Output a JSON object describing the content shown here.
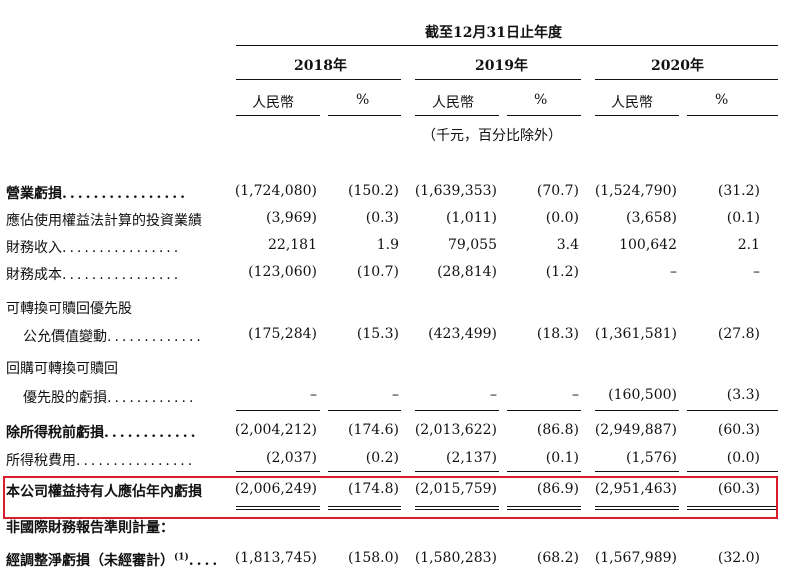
{
  "header": {
    "period_title": "截至12月31日止年度",
    "years": [
      "2018年",
      "2019年",
      "2020年"
    ],
    "currency_label": "人民幣",
    "percent_label": "%",
    "unit_note": "（千元，百分比除外）"
  },
  "rows": [
    {
      "label": "營業虧損",
      "leaders": "................",
      "bold": true,
      "values": [
        "(1,724,080)",
        "(150.2)",
        "(1,639,353)",
        "(70.7)",
        "(1,524,790)",
        "(31.2)"
      ]
    },
    {
      "label": "應佔使用權益法計算的投資業績",
      "leaders": "",
      "values": [
        "(3,969)",
        "(0.3)",
        "(1,011)",
        "(0.0)",
        "(3,658)",
        "(0.1)"
      ]
    },
    {
      "label": "財務收入",
      "leaders": "................",
      "values": [
        "22,181",
        "1.9",
        "79,055",
        "3.4",
        "100,642",
        "2.1"
      ]
    },
    {
      "label": "財務成本",
      "leaders": "................",
      "values": [
        "(123,060)",
        "(10.7)",
        "(28,814)",
        "(1.2)",
        "–",
        "–"
      ]
    },
    {
      "label": "可轉換可贖回優先股",
      "leaders": "",
      "values": []
    },
    {
      "label": "公允價值變動",
      "leaders": ".............",
      "indent": true,
      "values": [
        "(175,284)",
        "(15.3)",
        "(423,499)",
        "(18.3)",
        "(1,361,581)",
        "(27.8)"
      ]
    },
    {
      "label": "回購可轉換可贖回",
      "leaders": "",
      "values": []
    },
    {
      "label": "優先股的虧損",
      "leaders": "............",
      "indent": true,
      "values": [
        "–",
        "–",
        "–",
        "–",
        "(160,500)",
        "(3.3)"
      ]
    },
    {
      "label": "除所得稅前虧損",
      "leaders": "............",
      "bold": true,
      "values": [
        "(2,004,212)",
        "(174.6)",
        "(2,013,622)",
        "(86.8)",
        "(2,949,887)",
        "(60.3)"
      ]
    },
    {
      "label": "所得稅費用",
      "leaders": "................",
      "values": [
        "(2,037)",
        "(0.2)",
        "(2,137)",
        "(0.1)",
        "(1,576)",
        "(0.0)"
      ]
    },
    {
      "label": "本公司權益持有人應佔年內虧損",
      "leaders": "",
      "bold": true,
      "values": [
        "(2,006,249)",
        "(174.8)",
        "(2,015,759)",
        "(86.9)",
        "(2,951,463)",
        "(60.3)"
      ]
    },
    {
      "label": "非國際財務報告準則計量：",
      "leaders": "",
      "bold": true,
      "values": []
    },
    {
      "label": "經調整淨虧損（未經審計）",
      "sup": "(1)",
      "leaders": "....",
      "bold": true,
      "values": [
        "(1,813,745)",
        "(158.0)",
        "(1,580,283)",
        "(68.2)",
        "(1,567,989)",
        "(32.0)"
      ]
    }
  ],
  "highlight_color": "#d81e2a"
}
